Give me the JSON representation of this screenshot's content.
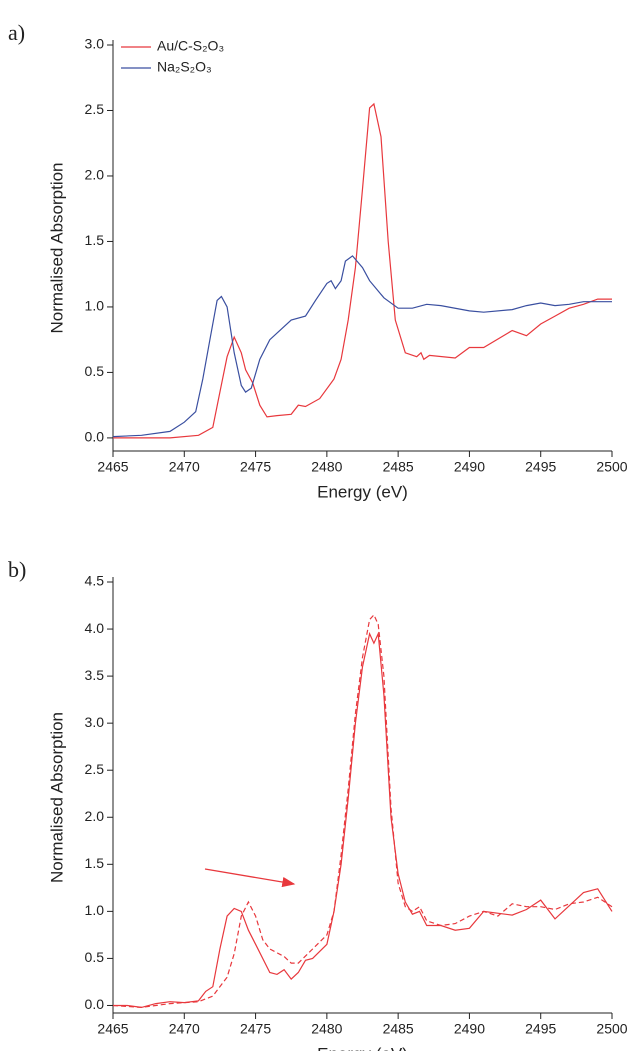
{
  "chart_data": [
    {
      "type": "line",
      "label": "a)",
      "xlabel": "Energy (eV)",
      "ylabel": "Normalised Absorption",
      "xlim": [
        2465,
        2500
      ],
      "ylim": [
        -0.1,
        3.0
      ],
      "xticks": [
        2465,
        2470,
        2475,
        2480,
        2485,
        2490,
        2495,
        2500
      ],
      "yticks": [
        {
          "value": 0,
          "label": "0.0"
        },
        0.5,
        {
          "value": 1,
          "label": "1.0"
        },
        1.5,
        {
          "value": 2,
          "label": "2.0"
        },
        2.5,
        {
          "value": 3,
          "label": "3.0"
        }
      ],
      "legend": "upper left",
      "series": [
        {
          "name": "Au/C-S₂O₃",
          "color": "#e8383d",
          "x": [
            2465,
            2469,
            2471,
            2472,
            2472.5,
            2473,
            2473.5,
            2474,
            2474.3,
            2474.8,
            2475.3,
            2475.8,
            2476.5,
            2477.5,
            2478,
            2478.5,
            2479.5,
            2480.5,
            2481,
            2481.5,
            2482,
            2482.5,
            2483,
            2483.3,
            2483.8,
            2484.3,
            2484.8,
            2485.5,
            2486.3,
            2486.6,
            2486.8,
            2487.2,
            2489,
            2490,
            2491,
            2493,
            2494,
            2495,
            2496,
            2497,
            2498,
            2499,
            2500
          ],
          "values": [
            0,
            0,
            0.02,
            0.08,
            0.35,
            0.62,
            0.77,
            0.65,
            0.52,
            0.42,
            0.25,
            0.16,
            0.17,
            0.18,
            0.25,
            0.24,
            0.3,
            0.45,
            0.6,
            0.9,
            1.3,
            1.9,
            2.52,
            2.55,
            2.3,
            1.5,
            0.9,
            0.65,
            0.62,
            0.65,
            0.6,
            0.63,
            0.61,
            0.69,
            0.69,
            0.82,
            0.78,
            0.87,
            0.93,
            0.99,
            1.02,
            1.06,
            1.06
          ]
        },
        {
          "name": "Na₂S₂O₃",
          "color": "#3a4fa0",
          "x": [
            2465,
            2467,
            2469,
            2470,
            2470.8,
            2471.3,
            2471.8,
            2472.3,
            2472.6,
            2473,
            2473.5,
            2474,
            2474.3,
            2474.7,
            2475.3,
            2476,
            2477,
            2477.5,
            2478.5,
            2479.2,
            2480,
            2480.3,
            2480.6,
            2481,
            2481.3,
            2481.8,
            2482.5,
            2483,
            2484,
            2485,
            2486,
            2487,
            2488,
            2490,
            2491,
            2493,
            2494,
            2495,
            2496,
            2497,
            2498,
            2500
          ],
          "values": [
            0.01,
            0.02,
            0.05,
            0.12,
            0.2,
            0.45,
            0.75,
            1.05,
            1.08,
            1.0,
            0.65,
            0.4,
            0.35,
            0.38,
            0.6,
            0.75,
            0.85,
            0.9,
            0.93,
            1.05,
            1.18,
            1.2,
            1.14,
            1.2,
            1.35,
            1.39,
            1.3,
            1.2,
            1.07,
            0.99,
            0.99,
            1.02,
            1.01,
            0.97,
            0.96,
            0.98,
            1.01,
            1.03,
            1.01,
            1.02,
            1.04,
            1.04
          ]
        }
      ]
    },
    {
      "type": "line",
      "label": "b)",
      "xlabel": "Energy (eV)",
      "ylabel": "Normalised Absorption",
      "xlim": [
        2465,
        2500
      ],
      "ylim": [
        -0.08,
        4.5
      ],
      "xticks": [
        2465,
        2470,
        2475,
        2480,
        2485,
        2490,
        2495,
        2500
      ],
      "yticks": [
        {
          "value": 0,
          "label": "0.0"
        },
        0.5,
        {
          "value": 1,
          "label": "1.0"
        },
        1.5,
        {
          "value": 2,
          "label": "2.0"
        },
        2.5,
        {
          "value": 3,
          "label": "3.0"
        },
        3.5,
        {
          "value": 4,
          "label": "4.0"
        },
        4.5
      ],
      "series": [
        {
          "color": "#e8383d",
          "dash": false,
          "x": [
            2465,
            2466,
            2467,
            2468,
            2469,
            2470,
            2471,
            2471.5,
            2472,
            2472.5,
            2473,
            2473.5,
            2474,
            2474.5,
            2475,
            2476,
            2476.5,
            2477,
            2477.5,
            2478,
            2478.5,
            2479,
            2480,
            2480.5,
            2481,
            2481.5,
            2482,
            2482.5,
            2483,
            2483.3,
            2483.6,
            2484,
            2484.5,
            2485,
            2485.5,
            2486,
            2486.5,
            2487,
            2488,
            2489,
            2490,
            2491,
            2493,
            2494,
            2495,
            2496,
            2498,
            2499,
            2500
          ],
          "values": [
            0,
            0,
            -0.02,
            0.02,
            0.04,
            0.03,
            0.05,
            0.15,
            0.2,
            0.6,
            0.95,
            1.03,
            1.0,
            0.8,
            0.65,
            0.35,
            0.33,
            0.38,
            0.28,
            0.35,
            0.48,
            0.5,
            0.65,
            1.0,
            1.5,
            2.2,
            3.0,
            3.6,
            3.95,
            3.85,
            3.95,
            3.3,
            2.0,
            1.4,
            1.1,
            0.97,
            1.0,
            0.85,
            0.85,
            0.8,
            0.82,
            1.0,
            0.96,
            1.02,
            1.12,
            0.92,
            1.2,
            1.24,
            1.0
          ]
        },
        {
          "color": "#e8383d",
          "dash": true,
          "x": [
            2465,
            2467,
            2469,
            2471,
            2472,
            2473,
            2473.5,
            2474,
            2474.5,
            2475,
            2475.5,
            2476,
            2477,
            2477.5,
            2478,
            2479,
            2480,
            2480.5,
            2481,
            2481.5,
            2482,
            2482.5,
            2483,
            2483.3,
            2483.6,
            2484,
            2484.5,
            2485,
            2485.5,
            2486,
            2486.5,
            2487,
            2488,
            2489,
            2490,
            2491,
            2492,
            2493,
            2494,
            2495,
            2496,
            2497,
            2498,
            2499,
            2500
          ],
          "values": [
            0,
            -0.02,
            0.02,
            0.04,
            0.1,
            0.3,
            0.55,
            0.95,
            1.1,
            0.95,
            0.7,
            0.6,
            0.52,
            0.45,
            0.45,
            0.6,
            0.75,
            1.0,
            1.6,
            2.3,
            3.1,
            3.7,
            4.1,
            4.15,
            4.05,
            3.5,
            2.1,
            1.3,
            1.05,
            1.0,
            1.05,
            0.9,
            0.85,
            0.87,
            0.95,
            1.0,
            0.95,
            1.08,
            1.05,
            1.05,
            1.02,
            1.08,
            1.1,
            1.15,
            1.05
          ]
        }
      ]
    }
  ]
}
